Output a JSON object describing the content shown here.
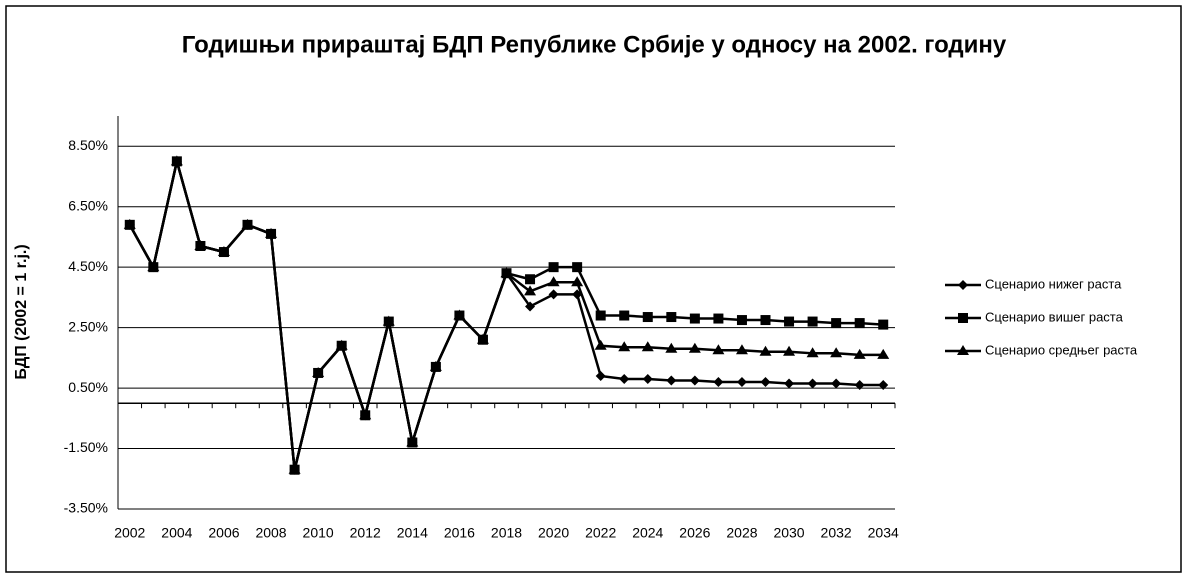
{
  "chart_data": {
    "type": "line",
    "title": "Годишњи прираштај БДП Републике Србије у односу на 2002. годину",
    "y_label": "БДП (2002 = 1 r.j.)",
    "categories": [
      "2002",
      null,
      "2004",
      null,
      "2006",
      null,
      "2008",
      null,
      "2010",
      null,
      "2012",
      null,
      "2014",
      null,
      "2016",
      null,
      "2018",
      null,
      "2020",
      null,
      "2022",
      null,
      "2024",
      null,
      "2026",
      null,
      "2028",
      null,
      "2030",
      null,
      "2032",
      null,
      "2034"
    ],
    "ylim": [
      -3.5,
      9.5
    ],
    "yticks": [
      {
        "value": -3.5,
        "label": "-3.50%"
      },
      {
        "value": -1.5,
        "label": "-1.50%"
      },
      {
        "value": 0.5,
        "label": "0.50%"
      },
      {
        "value": 2.5,
        "label": "2.50%"
      },
      {
        "value": 4.5,
        "label": "4.50%"
      },
      {
        "value": 6.5,
        "label": "6.50%"
      },
      {
        "value": 8.5,
        "label": "8.50%"
      }
    ],
    "grid": true,
    "legend": "right",
    "series": [
      {
        "name": "Сценарио нижег раста",
        "color": "#000000",
        "marker": "diamond",
        "values": [
          5.9,
          4.5,
          8.0,
          5.2,
          5.0,
          5.9,
          5.6,
          -2.2,
          1.0,
          1.9,
          -0.4,
          2.7,
          -1.3,
          1.2,
          2.9,
          2.1,
          4.3,
          3.2,
          3.6,
          3.6,
          0.9,
          0.8,
          0.8,
          0.75,
          0.75,
          0.7,
          0.7,
          0.7,
          0.65,
          0.65,
          0.65,
          0.6,
          0.6
        ]
      },
      {
        "name": "Сценарио вишег раста",
        "color": "#000000",
        "marker": "square",
        "values": [
          5.9,
          4.5,
          8.0,
          5.2,
          5.0,
          5.9,
          5.6,
          -2.2,
          1.0,
          1.9,
          -0.4,
          2.7,
          -1.3,
          1.2,
          2.9,
          2.1,
          4.3,
          4.1,
          4.5,
          4.5,
          2.9,
          2.9,
          2.85,
          2.85,
          2.8,
          2.8,
          2.75,
          2.75,
          2.7,
          2.7,
          2.65,
          2.65,
          2.6
        ]
      },
      {
        "name": "Сценарио средњег раста",
        "color": "#000000",
        "marker": "triangle",
        "values": [
          5.9,
          4.5,
          8.0,
          5.2,
          5.0,
          5.9,
          5.6,
          -2.2,
          1.0,
          1.9,
          -0.4,
          2.7,
          -1.3,
          1.2,
          2.9,
          2.1,
          4.3,
          3.7,
          4.0,
          4.0,
          1.9,
          1.85,
          1.85,
          1.8,
          1.8,
          1.75,
          1.75,
          1.7,
          1.7,
          1.65,
          1.65,
          1.6,
          1.6
        ]
      }
    ]
  }
}
